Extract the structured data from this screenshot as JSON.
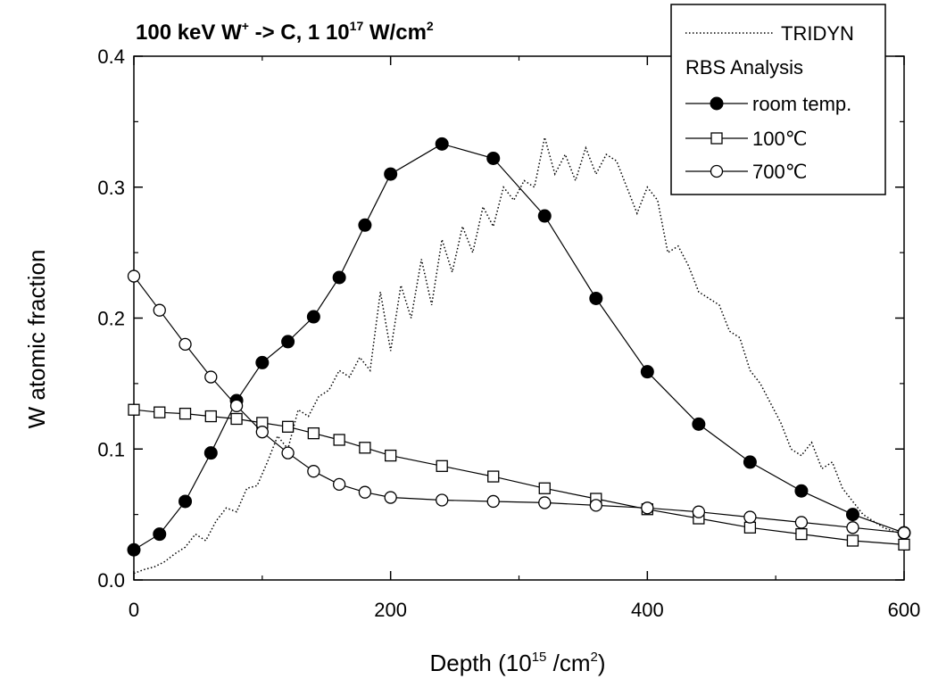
{
  "chart_data": {
    "type": "line",
    "title": {
      "prefix": "100 keV W",
      "prefix_sup": "+",
      "middle": " -> C, 1 10",
      "middle_sup": "17",
      "suffix": " W/cm",
      "suffix_sup": "2"
    },
    "xlabel": {
      "prefix": "Depth (10",
      "sup1": "15",
      "middle": " /cm",
      "sup2": "2",
      "suffix": ")"
    },
    "ylabel": "W atomic fraction",
    "xlim": [
      0,
      600
    ],
    "ylim": [
      0,
      0.4
    ],
    "x_ticks": [
      {
        "value": 0,
        "label": "0"
      },
      {
        "value": 200,
        "label": "200"
      },
      {
        "value": 400,
        "label": "400"
      },
      {
        "value": 600,
        "label": "600"
      }
    ],
    "y_ticks": [
      {
        "value": 0.0,
        "label": "0.0"
      },
      {
        "value": 0.1,
        "label": "0.1"
      },
      {
        "value": 0.2,
        "label": "0.2"
      },
      {
        "value": 0.3,
        "label": "0.3"
      },
      {
        "value": 0.4,
        "label": "0.4"
      }
    ],
    "grid": false,
    "legend_position": "top-right",
    "legend_header": "RBS Analysis",
    "series": [
      {
        "name": "TRIDYN",
        "style": "dotted-line",
        "x": [
          0,
          8,
          16,
          24,
          32,
          40,
          48,
          56,
          64,
          72,
          80,
          88,
          96,
          104,
          112,
          120,
          128,
          136,
          144,
          152,
          160,
          168,
          176,
          184,
          192,
          200,
          208,
          216,
          224,
          232,
          240,
          248,
          256,
          264,
          272,
          280,
          288,
          296,
          304,
          312,
          320,
          328,
          336,
          344,
          352,
          360,
          368,
          376,
          384,
          392,
          400,
          408,
          416,
          424,
          432,
          440,
          448,
          456,
          464,
          472,
          480,
          488,
          496,
          504,
          512,
          520,
          528,
          536,
          544,
          552,
          560,
          568,
          576,
          584,
          592,
          600
        ],
        "values": [
          0.005,
          0.008,
          0.01,
          0.014,
          0.02,
          0.025,
          0.035,
          0.03,
          0.045,
          0.055,
          0.052,
          0.07,
          0.072,
          0.09,
          0.11,
          0.1,
          0.13,
          0.125,
          0.14,
          0.145,
          0.16,
          0.155,
          0.17,
          0.16,
          0.22,
          0.175,
          0.225,
          0.2,
          0.245,
          0.21,
          0.26,
          0.235,
          0.27,
          0.25,
          0.285,
          0.27,
          0.3,
          0.29,
          0.305,
          0.3,
          0.338,
          0.31,
          0.325,
          0.305,
          0.33,
          0.31,
          0.325,
          0.32,
          0.3,
          0.28,
          0.3,
          0.29,
          0.25,
          0.255,
          0.24,
          0.22,
          0.215,
          0.21,
          0.19,
          0.185,
          0.16,
          0.15,
          0.135,
          0.12,
          0.1,
          0.095,
          0.105,
          0.085,
          0.09,
          0.07,
          0.06,
          0.05,
          0.045,
          0.04,
          0.037,
          0.035
        ]
      },
      {
        "name": "room temp.",
        "style": "line-filled-circle",
        "x": [
          0,
          20,
          40,
          60,
          80,
          100,
          120,
          140,
          160,
          180,
          200,
          240,
          280,
          320,
          360,
          400,
          440,
          480,
          520,
          560,
          600
        ],
        "values": [
          0.023,
          0.035,
          0.06,
          0.097,
          0.137,
          0.166,
          0.182,
          0.201,
          0.231,
          0.271,
          0.31,
          0.333,
          0.322,
          0.278,
          0.215,
          0.159,
          0.119,
          0.09,
          0.068,
          0.05,
          0.036
        ]
      },
      {
        "name": "100℃",
        "style": "line-open-square",
        "x": [
          0,
          20,
          40,
          60,
          80,
          100,
          120,
          140,
          160,
          180,
          200,
          240,
          280,
          320,
          360,
          400,
          440,
          480,
          520,
          560,
          600
        ],
        "values": [
          0.13,
          0.128,
          0.127,
          0.125,
          0.123,
          0.12,
          0.117,
          0.112,
          0.107,
          0.101,
          0.095,
          0.087,
          0.079,
          0.07,
          0.062,
          0.054,
          0.047,
          0.04,
          0.035,
          0.03,
          0.027
        ]
      },
      {
        "name": "700℃",
        "style": "line-open-circle",
        "x": [
          0,
          20,
          40,
          60,
          80,
          100,
          120,
          140,
          160,
          180,
          200,
          240,
          280,
          320,
          360,
          400,
          440,
          480,
          520,
          560,
          600
        ],
        "values": [
          0.232,
          0.206,
          0.18,
          0.155,
          0.133,
          0.113,
          0.097,
          0.083,
          0.073,
          0.067,
          0.063,
          0.061,
          0.06,
          0.059,
          0.057,
          0.055,
          0.052,
          0.048,
          0.044,
          0.04,
          0.036
        ]
      }
    ]
  }
}
